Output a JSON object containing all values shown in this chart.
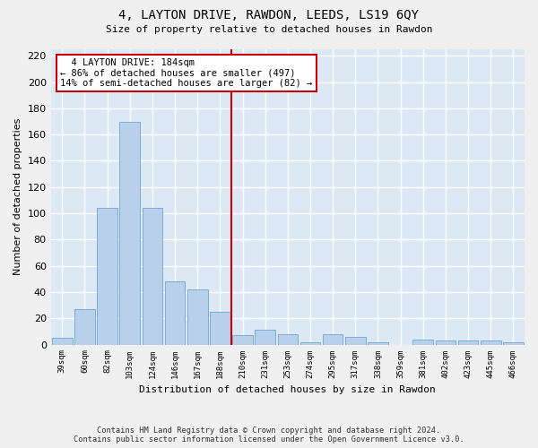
{
  "title": "4, LAYTON DRIVE, RAWDON, LEEDS, LS19 6QY",
  "subtitle": "Size of property relative to detached houses in Rawdon",
  "xlabel": "Distribution of detached houses by size in Rawdon",
  "ylabel": "Number of detached properties",
  "categories": [
    "39sqm",
    "60sqm",
    "82sqm",
    "103sqm",
    "124sqm",
    "146sqm",
    "167sqm",
    "188sqm",
    "210sqm",
    "231sqm",
    "253sqm",
    "274sqm",
    "295sqm",
    "317sqm",
    "338sqm",
    "359sqm",
    "381sqm",
    "402sqm",
    "423sqm",
    "445sqm",
    "466sqm"
  ],
  "values": [
    5,
    27,
    104,
    170,
    104,
    48,
    42,
    25,
    7,
    11,
    8,
    2,
    8,
    6,
    2,
    0,
    4,
    3,
    3,
    3,
    2
  ],
  "bar_color": "#b8d0ea",
  "bar_edge_color": "#7aadd4",
  "background_color": "#dde8f5",
  "grid_color": "#ffffff",
  "fig_background": "#f0f0f0",
  "vline_x_index": 7,
  "vline_color": "#cc0000",
  "annotation_line1": "  4 LAYTON DRIVE: 184sqm  ",
  "annotation_line2": "← 86% of detached houses are smaller (497)",
  "annotation_line3": "14% of semi-detached houses are larger (82) →",
  "annotation_box_color": "#ffffff",
  "annotation_box_edge_color": "#cc0000",
  "ylim": [
    0,
    225
  ],
  "yticks": [
    0,
    20,
    40,
    60,
    80,
    100,
    120,
    140,
    160,
    180,
    200,
    220
  ],
  "footer_line1": "Contains HM Land Registry data © Crown copyright and database right 2024.",
  "footer_line2": "Contains public sector information licensed under the Open Government Licence v3.0."
}
